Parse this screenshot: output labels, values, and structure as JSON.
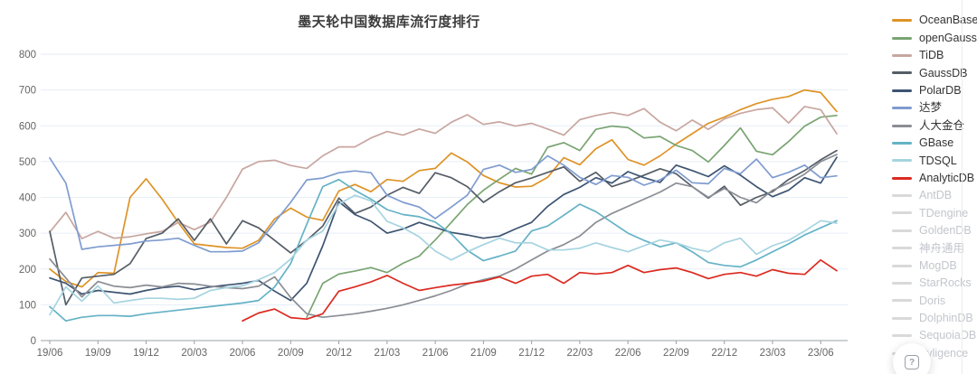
{
  "chart": {
    "title": "墨天轮中国数据库流行度排行"
  },
  "axes": {
    "axis_line_color": "#9aa0a6",
    "tick_label_color": "#666666",
    "grid_color": "#e6eef7"
  },
  "chart_data": {
    "type": "line",
    "title": "墨天轮中国数据库流行度排行",
    "xlabel": "",
    "ylabel": "",
    "ylim": [
      0,
      800
    ],
    "y_ticks": [
      0,
      100,
      200,
      300,
      400,
      500,
      600,
      700,
      800
    ],
    "grid": "horizontal",
    "legend_position": "right",
    "x": [
      "19/06",
      "19/07",
      "19/08",
      "19/09",
      "19/10",
      "19/11",
      "19/12",
      "20/01",
      "20/02",
      "20/03",
      "20/04",
      "20/05",
      "20/06",
      "20/07",
      "20/08",
      "20/09",
      "20/10",
      "20/11",
      "20/12",
      "21/01",
      "21/02",
      "21/03",
      "21/04",
      "21/05",
      "21/06",
      "21/07",
      "21/08",
      "21/09",
      "21/10",
      "21/11",
      "21/12",
      "22/01",
      "22/02",
      "22/03",
      "22/04",
      "22/05",
      "22/06",
      "22/07",
      "22/08",
      "22/09",
      "22/10",
      "22/11",
      "22/12",
      "23/01",
      "23/02",
      "23/03",
      "23/04",
      "23/05",
      "23/06",
      "23/07"
    ],
    "x_tick_labels": [
      "19/06",
      "19/09",
      "19/12",
      "20/03",
      "20/06",
      "20/09",
      "20/12",
      "21/03",
      "21/06",
      "21/09",
      "21/12",
      "22/03",
      "22/06",
      "22/09",
      "22/12",
      "23/03",
      "23/06"
    ],
    "series": [
      {
        "name": "OceanBase",
        "color": "#de9326",
        "values": [
          200,
          165,
          150,
          190,
          188,
          400,
          452,
          395,
          330,
          270,
          265,
          260,
          258,
          280,
          340,
          370,
          345,
          336,
          418,
          436,
          416,
          450,
          445,
          475,
          481,
          524,
          499,
          461,
          441,
          429,
          431,
          456,
          511,
          491,
          536,
          561,
          506,
          490,
          516,
          549,
          578,
          607,
          624,
          645,
          662,
          674,
          682,
          700,
          693,
          640
        ]
      },
      {
        "name": "openGauss",
        "color": "#79a471",
        "values": [
          null,
          null,
          null,
          null,
          null,
          null,
          null,
          null,
          null,
          null,
          null,
          null,
          null,
          null,
          null,
          null,
          65,
          160,
          186,
          194,
          204,
          190,
          216,
          236,
          281,
          330,
          380,
          420,
          451,
          481,
          465,
          540,
          553,
          531,
          590,
          599,
          595,
          566,
          570,
          545,
          531,
          499,
          545,
          594,
          529,
          519,
          556,
          599,
          624,
          629
        ]
      },
      {
        "name": "TiDB",
        "color": "#c8a6a0",
        "values": [
          303,
          358,
          285,
          305,
          286,
          290,
          298,
          305,
          330,
          310,
          331,
          400,
          479,
          500,
          504,
          489,
          481,
          516,
          541,
          541,
          566,
          584,
          574,
          591,
          579,
          610,
          631,
          604,
          611,
          599,
          607,
          591,
          574,
          617,
          629,
          637,
          629,
          648,
          610,
          586,
          616,
          590,
          619,
          635,
          645,
          650,
          608,
          654,
          645,
          578
        ]
      },
      {
        "name": "GaussDB",
        "color": "#555d66",
        "values": [
          305,
          100,
          175,
          180,
          185,
          215,
          285,
          300,
          340,
          280,
          340,
          270,
          335,
          315,
          280,
          245,
          280,
          320,
          398,
          355,
          373,
          406,
          428,
          411,
          469,
          455,
          430,
          386,
          416,
          441,
          454,
          470,
          485,
          445,
          470,
          430,
          445,
          462,
          480,
          466,
          430,
          398,
          431,
          378,
          400,
          416,
          450,
          475,
          505,
          531
        ]
      },
      {
        "name": "PolarDB",
        "color": "#3d5472",
        "values": [
          175,
          160,
          130,
          140,
          135,
          130,
          140,
          148,
          152,
          142,
          150,
          155,
          160,
          168,
          138,
          112,
          160,
          265,
          388,
          352,
          333,
          300,
          312,
          330,
          316,
          302,
          295,
          286,
          292,
          312,
          330,
          375,
          408,
          428,
          455,
          440,
          472,
          455,
          442,
          490,
          475,
          458,
          488,
          462,
          430,
          402,
          420,
          455,
          440,
          512
        ]
      },
      {
        "name": "达梦",
        "color": "#7f9cd0",
        "values": [
          510,
          440,
          255,
          262,
          266,
          270,
          278,
          281,
          286,
          266,
          248,
          248,
          250,
          273,
          330,
          386,
          449,
          454,
          469,
          474,
          469,
          406,
          386,
          373,
          341,
          373,
          406,
          478,
          490,
          470,
          478,
          516,
          490,
          456,
          436,
          461,
          456,
          434,
          449,
          476,
          441,
          438,
          481,
          466,
          507,
          455,
          470,
          490,
          455,
          460
        ]
      },
      {
        "name": "人大金仓",
        "color": "#8a8d94",
        "values": [
          228,
          175,
          122,
          165,
          152,
          148,
          155,
          150,
          160,
          158,
          152,
          148,
          145,
          152,
          178,
          120,
          75,
          65,
          70,
          75,
          82,
          90,
          100,
          112,
          125,
          140,
          158,
          170,
          180,
          200,
          225,
          250,
          268,
          292,
          330,
          355,
          375,
          395,
          415,
          440,
          430,
          400,
          425,
          400,
          385,
          420,
          440,
          465,
          500,
          520
        ]
      },
      {
        "name": "GBase",
        "color": "#64b2c6",
        "values": [
          95,
          55,
          65,
          70,
          70,
          68,
          75,
          80,
          85,
          90,
          95,
          100,
          105,
          112,
          150,
          215,
          325,
          430,
          450,
          420,
          395,
          366,
          352,
          346,
          331,
          298,
          252,
          223,
          236,
          250,
          306,
          320,
          350,
          381,
          360,
          330,
          300,
          280,
          262,
          273,
          248,
          218,
          210,
          206,
          225,
          248,
          270,
          295,
          315,
          335
        ]
      },
      {
        "name": "TDSQL",
        "color": "#a6d4e0",
        "values": [
          72,
          150,
          110,
          153,
          105,
          112,
          118,
          118,
          115,
          118,
          140,
          148,
          153,
          170,
          190,
          228,
          281,
          306,
          381,
          406,
          390,
          333,
          315,
          290,
          250,
          225,
          248,
          268,
          286,
          273,
          273,
          253,
          253,
          258,
          273,
          260,
          248,
          265,
          281,
          273,
          258,
          248,
          273,
          286,
          241,
          265,
          280,
          306,
          335,
          328
        ]
      },
      {
        "name": "AnalyticDB",
        "color": "#dc2a20",
        "values": [
          null,
          null,
          null,
          null,
          null,
          null,
          null,
          null,
          null,
          null,
          null,
          null,
          55,
          77,
          88,
          64,
          60,
          75,
          138,
          150,
          164,
          182,
          160,
          140,
          148,
          155,
          160,
          166,
          178,
          160,
          180,
          185,
          160,
          190,
          186,
          190,
          210,
          190,
          198,
          203,
          190,
          173,
          185,
          190,
          180,
          198,
          188,
          185,
          225,
          195
        ]
      }
    ]
  },
  "legend": {
    "active_text_color": "#333333",
    "disabled_swatch_color": "#d9d9d9",
    "disabled_text_color": "#c2c6cc",
    "items": [
      {
        "label": "OceanBase",
        "color": "#de9326",
        "active": true
      },
      {
        "label": "openGauss",
        "color": "#79a471",
        "active": true
      },
      {
        "label": "TiDB",
        "color": "#c8a6a0",
        "active": true
      },
      {
        "label": "GaussDB",
        "color": "#555d66",
        "active": true
      },
      {
        "label": "PolarDB",
        "color": "#3d5472",
        "active": true
      },
      {
        "label": "达梦",
        "color": "#7f9cd0",
        "active": true
      },
      {
        "label": "人大金仓",
        "color": "#8a8d94",
        "active": true
      },
      {
        "label": "GBase",
        "color": "#64b2c6",
        "active": true
      },
      {
        "label": "TDSQL",
        "color": "#a6d4e0",
        "active": true
      },
      {
        "label": "AnalyticDB",
        "color": "#dc2a20",
        "active": true
      },
      {
        "label": "AntDB",
        "color": "#d9d9d9",
        "active": false
      },
      {
        "label": "TDengine",
        "color": "#d9d9d9",
        "active": false
      },
      {
        "label": "GoldenDB",
        "color": "#d9d9d9",
        "active": false
      },
      {
        "label": "神舟通用",
        "color": "#d9d9d9",
        "active": false
      },
      {
        "label": "MogDB",
        "color": "#d9d9d9",
        "active": false
      },
      {
        "label": "StarRocks",
        "color": "#d9d9d9",
        "active": false
      },
      {
        "label": "Doris",
        "color": "#d9d9d9",
        "active": false
      },
      {
        "label": "DolphinDB",
        "color": "#d9d9d9",
        "active": false
      },
      {
        "label": "SequoiaDB",
        "color": "#d9d9d9",
        "active": false
      },
      {
        "label": "Kyligence",
        "color": "#d9d9d9",
        "active": false
      }
    ]
  },
  "floating_button": {
    "label": "?",
    "icon": "help-icon"
  }
}
